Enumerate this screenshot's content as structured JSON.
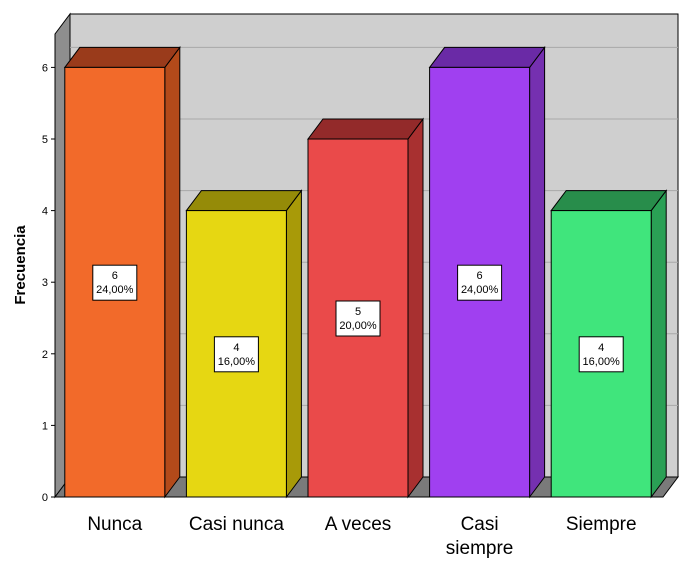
{
  "chart_data": {
    "type": "bar",
    "style": "3d",
    "categories": [
      "Nunca",
      "Casi nunca",
      "A veces",
      "Casi siempre",
      "Siempre"
    ],
    "category_lines": [
      [
        "Nunca"
      ],
      [
        "Casi nunca"
      ],
      [
        "A veces"
      ],
      [
        "Casi",
        "siempre"
      ],
      [
        "Siempre"
      ]
    ],
    "values": [
      6,
      4,
      5,
      6,
      4
    ],
    "value_labels": [
      "6",
      "4",
      "5",
      "6",
      "4"
    ],
    "percent_labels": [
      "24,00%",
      "16,00%",
      "20,00%",
      "24,00%",
      "16,00%"
    ],
    "colors": [
      "#f26a2a",
      "#e6d712",
      "#ea4a4a",
      "#a040f0",
      "#40e57c"
    ],
    "top_colors": [
      "#9a3b1b",
      "#958b08",
      "#932a2a",
      "#6a2aa6",
      "#288d4b"
    ],
    "side_colors": [
      "#b34a1a",
      "#a89a08",
      "#a83030",
      "#7530b0",
      "#2aa055"
    ],
    "ylabel": "Frecuencia",
    "xlabel": "",
    "title": "",
    "ylim": [
      0,
      6
    ],
    "yticks": [
      "0",
      "1",
      "2",
      "3",
      "4",
      "5",
      "6"
    ],
    "grid": true,
    "legend": "none"
  }
}
